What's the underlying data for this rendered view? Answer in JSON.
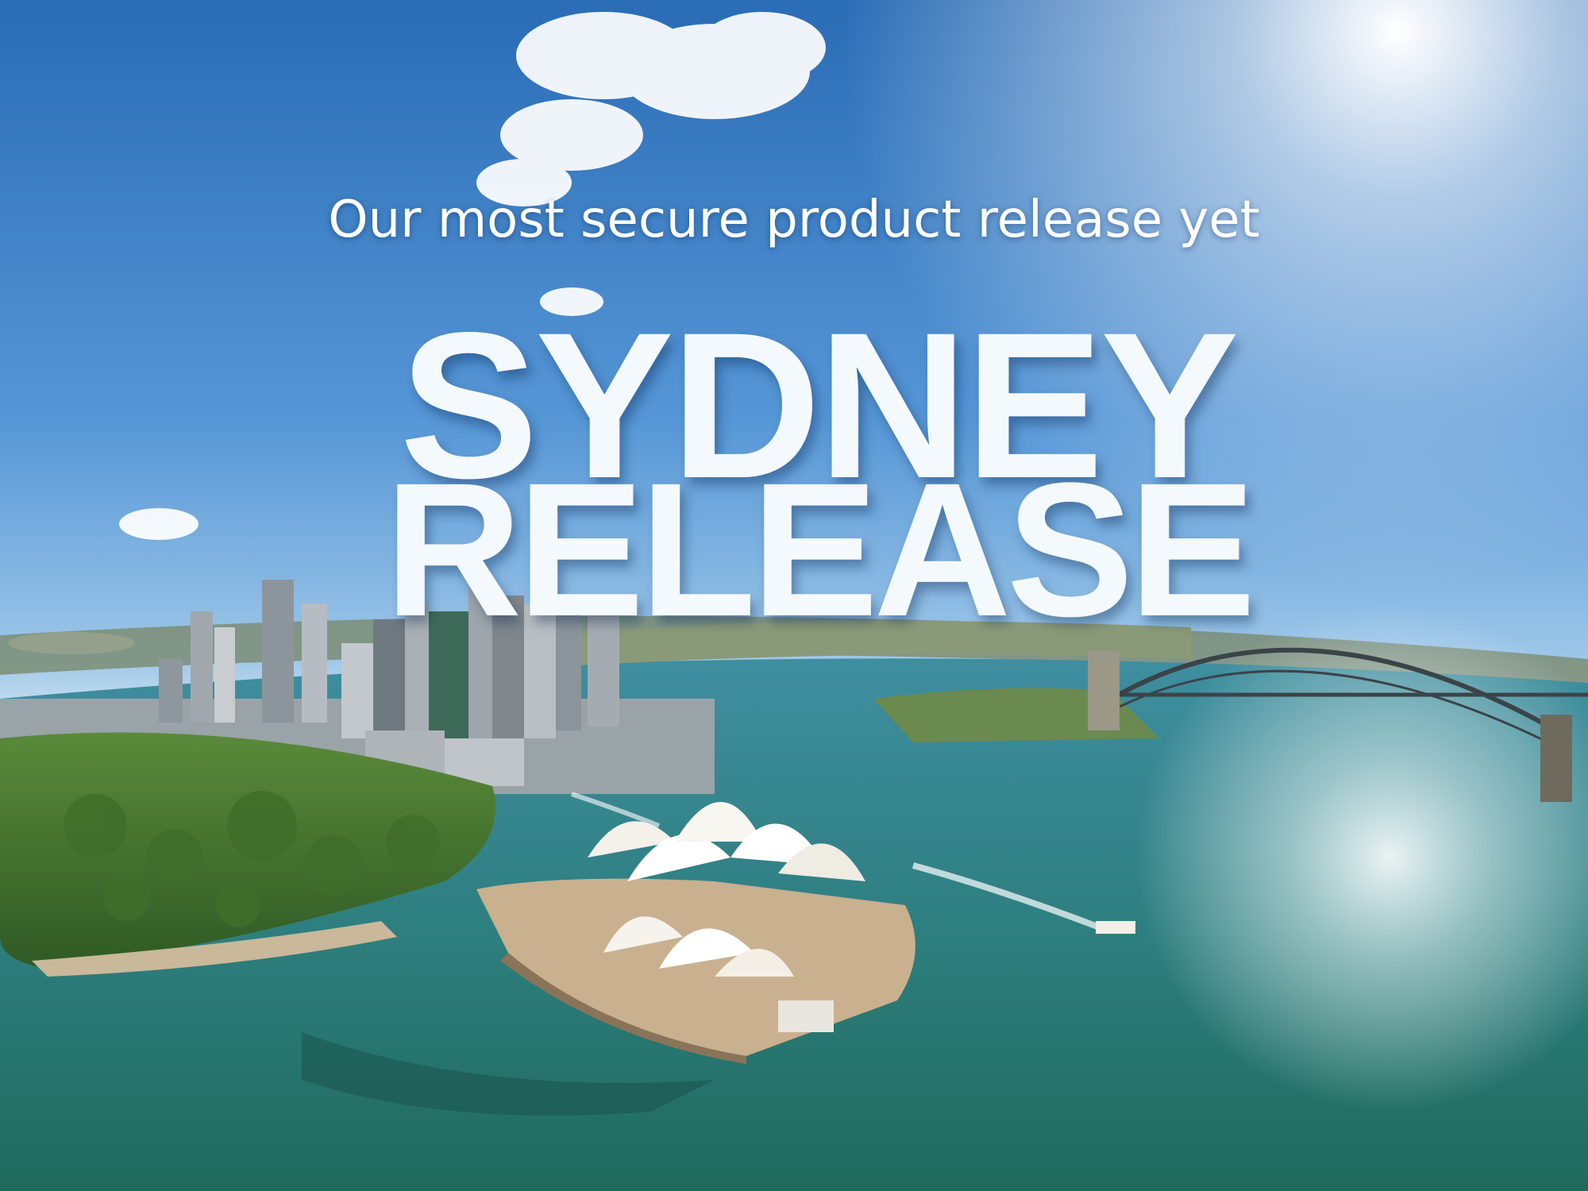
{
  "tagline": "Our most secure product release yet",
  "headline": {
    "line1": "SYDNEY",
    "line2": "RELEASE"
  },
  "colors": {
    "sky_top": "#2c6fb8",
    "sky_horizon": "#cfe3f2",
    "water": "#2f8a86",
    "headline_text": "#f4f9fd"
  }
}
